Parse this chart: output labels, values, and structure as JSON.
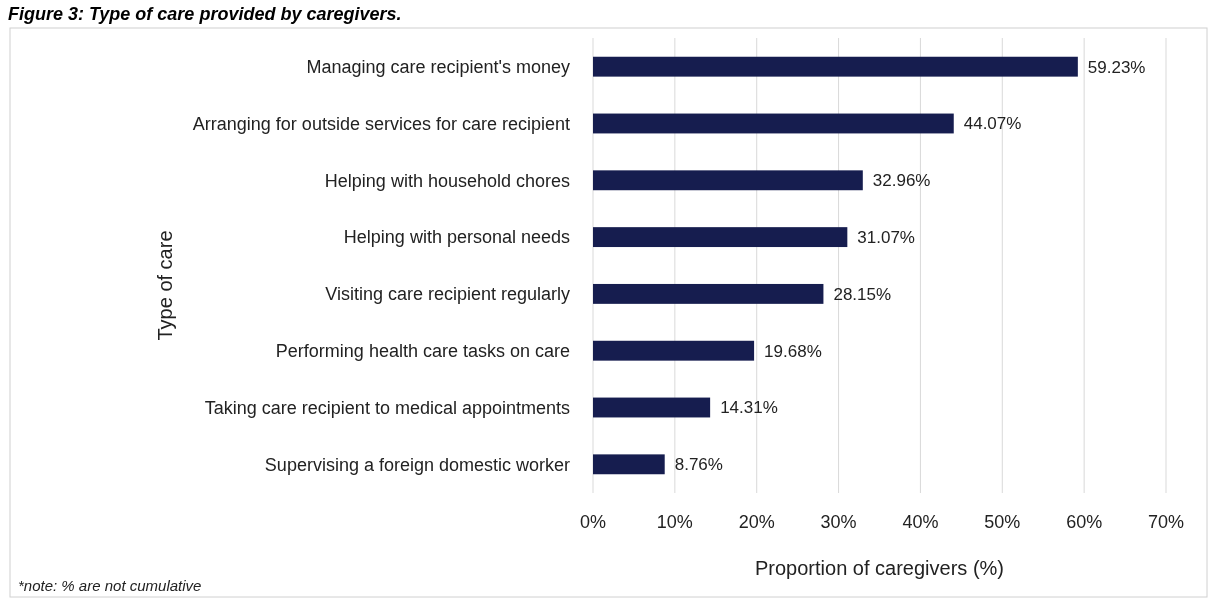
{
  "chart_data": {
    "type": "bar",
    "orientation": "horizontal",
    "title": "Figure 3: Type of care provided by caregivers.",
    "xlabel": "Proportion of caregivers (%)",
    "ylabel": "Type of care",
    "categories": [
      "Managing care recipient's money",
      "Arranging for outside services for care recipient",
      "Helping with household chores",
      "Helping with personal needs",
      "Visiting care recipient regularly",
      "Performing health care tasks on care",
      "Taking care recipient to medical appointments",
      "Supervising a foreign domestic worker"
    ],
    "values": [
      59.23,
      44.07,
      32.96,
      31.07,
      28.15,
      19.68,
      14.31,
      8.76
    ],
    "value_labels": [
      "59.23%",
      "44.07%",
      "32.96%",
      "31.07%",
      "28.15%",
      "19.68%",
      "14.31%",
      "8.76%"
    ],
    "color": "#161d4f",
    "xlim": [
      0,
      70
    ],
    "xticks": [
      {
        "value": 0,
        "label": "0%"
      },
      {
        "value": 10,
        "label": "10%"
      },
      {
        "value": 20,
        "label": "20%"
      },
      {
        "value": 30,
        "label": "30%"
      },
      {
        "value": 40,
        "label": "40%"
      },
      {
        "value": 50,
        "label": "50%"
      },
      {
        "value": 60,
        "label": "60%"
      },
      {
        "value": 70,
        "label": "70%"
      }
    ],
    "grid": "x",
    "annotations": [
      "*note: % are not cumulative"
    ]
  }
}
